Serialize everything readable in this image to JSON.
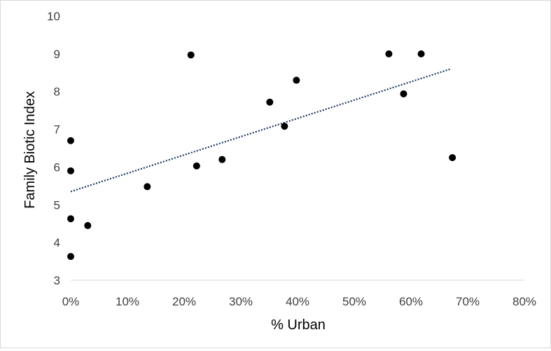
{
  "chart_data": {
    "type": "scatter",
    "xlabel": "% Urban",
    "ylabel": "Family Biotic Index",
    "xlim": [
      0,
      80
    ],
    "ylim": [
      3,
      10
    ],
    "x_tick_values": [
      0,
      10,
      20,
      30,
      40,
      50,
      60,
      70,
      80
    ],
    "x_tick_labels": [
      "0%",
      "10%",
      "20%",
      "30%",
      "40%",
      "50%",
      "60%",
      "70%",
      "80%"
    ],
    "y_tick_values": [
      3,
      4,
      5,
      6,
      7,
      8,
      9,
      10
    ],
    "y_tick_labels": [
      "3",
      "4",
      "5",
      "6",
      "7",
      "8",
      "9",
      "10"
    ],
    "grid": false,
    "legend": "none",
    "point_color": "#000000",
    "trendline": {
      "type": "linear",
      "style": "dotted",
      "color": "#1f3864",
      "x_range": [
        0,
        67
      ],
      "y_start": 5.35,
      "y_end": 8.6
    },
    "points": [
      {
        "x": 0,
        "y": 6.7
      },
      {
        "x": 0,
        "y": 5.9
      },
      {
        "x": 0,
        "y": 4.63
      },
      {
        "x": 0,
        "y": 3.63
      },
      {
        "x": 3,
        "y": 4.45
      },
      {
        "x": 13.5,
        "y": 5.48
      },
      {
        "x": 21.2,
        "y": 8.97
      },
      {
        "x": 22.2,
        "y": 6.03
      },
      {
        "x": 26.7,
        "y": 6.2
      },
      {
        "x": 35.1,
        "y": 7.72
      },
      {
        "x": 37.7,
        "y": 7.08
      },
      {
        "x": 39.8,
        "y": 8.3
      },
      {
        "x": 56.1,
        "y": 9.0
      },
      {
        "x": 58.7,
        "y": 7.94
      },
      {
        "x": 61.8,
        "y": 9.0
      },
      {
        "x": 67.3,
        "y": 6.25
      }
    ]
  }
}
